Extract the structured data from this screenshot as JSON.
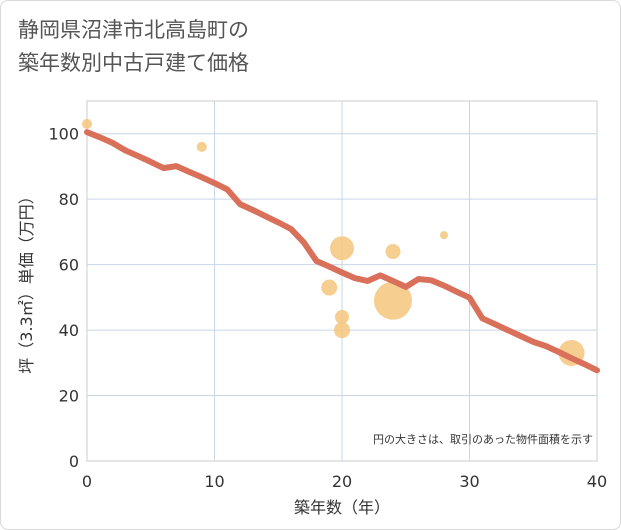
{
  "chart_data": {
    "type": "scatter",
    "title_line1": "静岡県沼津市北高島町の",
    "title_line2": "築年数別中古戸建て価格",
    "xlabel": "築年数（年）",
    "ylabel": "坪（3.3㎡）単価（万円）",
    "xlim": [
      0,
      40
    ],
    "ylim": [
      0,
      110
    ],
    "xticks": [
      "0",
      "10",
      "20",
      "30",
      "40"
    ],
    "yticks": [
      "0",
      "20",
      "40",
      "60",
      "80",
      "100"
    ],
    "note": "円の大きさは、取引のあった物件面積を示す",
    "grid": true,
    "colors": {
      "trend": "#d9705a",
      "bubble": "#f5c57b"
    },
    "points": [
      {
        "x": 0,
        "y": 103,
        "size": 1.0
      },
      {
        "x": 9,
        "y": 96,
        "size": 1.0
      },
      {
        "x": 19,
        "y": 53,
        "size": 1.6
      },
      {
        "x": 20,
        "y": 65,
        "size": 2.4
      },
      {
        "x": 20,
        "y": 44,
        "size": 1.4
      },
      {
        "x": 20,
        "y": 40,
        "size": 1.6
      },
      {
        "x": 24,
        "y": 64,
        "size": 1.5
      },
      {
        "x": 24,
        "y": 49,
        "size": 3.8
      },
      {
        "x": 28,
        "y": 69,
        "size": 0.8
      },
      {
        "x": 38,
        "y": 33,
        "size": 2.6
      }
    ],
    "trend": {
      "x": [
        0,
        1,
        2,
        3,
        4,
        5,
        6,
        7,
        8,
        9,
        10,
        11,
        12,
        13,
        14,
        15,
        16,
        17,
        18,
        19,
        20,
        21,
        22,
        23,
        24,
        25,
        26,
        27,
        28,
        29,
        30,
        31,
        32,
        33,
        34,
        35,
        36,
        37,
        38,
        39,
        40
      ],
      "y": [
        100.5,
        98.9,
        97.2,
        94.9,
        93.2,
        91.4,
        89.5,
        90.1,
        88.4,
        86.7,
        84.9,
        83.0,
        78.5,
        76.7,
        74.8,
        72.9,
        70.9,
        66.8,
        61.1,
        59.4,
        57.6,
        55.9,
        55.0,
        56.7,
        55.0,
        53.2,
        55.6,
        55.2,
        53.6,
        51.7,
        49.9,
        43.6,
        41.8,
        40.0,
        38.2,
        36.4,
        35.1,
        33.3,
        31.4,
        29.6,
        27.7
      ]
    }
  }
}
